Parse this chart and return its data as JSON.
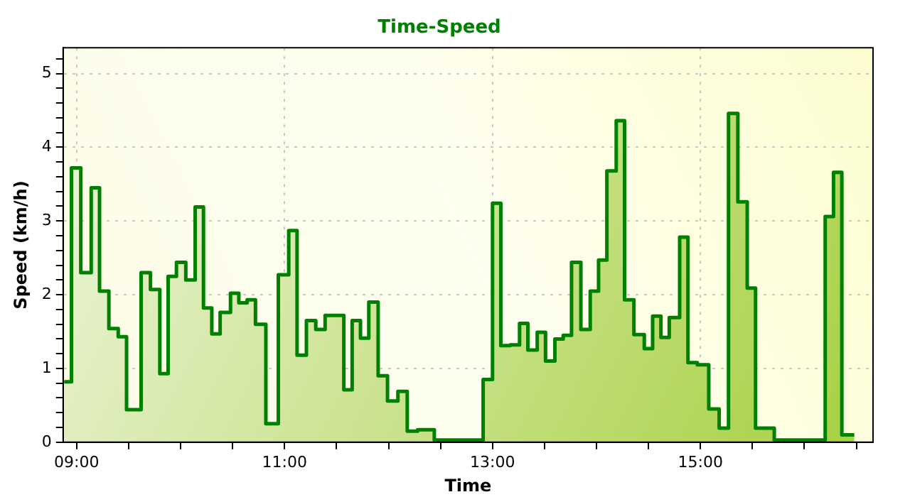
{
  "chart_data": {
    "type": "area",
    "title": "Time-Speed",
    "xlabel": "Time",
    "ylabel": "Speed (km/h)",
    "color": "#008000",
    "grid": true,
    "legend": false,
    "marker": "none",
    "x": [
      8.88,
      8.95,
      8.95,
      9.04,
      9.04,
      9.14,
      9.14,
      9.22,
      9.22,
      9.31,
      9.31,
      9.4,
      9.4,
      9.48,
      9.48,
      9.62,
      9.62,
      9.71,
      9.71,
      9.8,
      9.8,
      9.88,
      9.88,
      9.96,
      9.96,
      10.05,
      10.05,
      10.14,
      10.14,
      10.22,
      10.22,
      10.3,
      10.3,
      10.38,
      10.38,
      10.48,
      10.48,
      10.56,
      10.56,
      10.64,
      10.64,
      10.72,
      10.72,
      10.82,
      10.82,
      10.94,
      10.94,
      11.04,
      11.04,
      11.12,
      11.12,
      11.21,
      11.21,
      11.3,
      11.3,
      11.39,
      11.39,
      11.57,
      11.57,
      11.65,
      11.65,
      11.73,
      11.73,
      11.81,
      11.81,
      11.9,
      11.9,
      11.99,
      11.99,
      12.09,
      12.09,
      12.18,
      12.18,
      12.28,
      12.28,
      12.44,
      12.44,
      12.91,
      12.91,
      13.0,
      13.0,
      13.08,
      13.08,
      13.17,
      13.17,
      13.26,
      13.26,
      13.34,
      13.34,
      13.43,
      13.43,
      13.51,
      13.51,
      13.6,
      13.6,
      13.68,
      13.68,
      13.76,
      13.76,
      13.85,
      13.85,
      13.94,
      13.94,
      14.02,
      14.02,
      14.1,
      14.1,
      14.19,
      14.19,
      14.27,
      14.27,
      14.36,
      14.36,
      14.46,
      14.46,
      14.54,
      14.54,
      14.62,
      14.62,
      14.7,
      14.7,
      14.8,
      14.8,
      14.88,
      14.88,
      14.97,
      14.97,
      15.08,
      15.08,
      15.18,
      15.18,
      15.27,
      15.27,
      15.36,
      15.36,
      15.45,
      15.45,
      15.53,
      15.53,
      15.71,
      15.71,
      16.2,
      16.2,
      16.28,
      16.28,
      16.36,
      16.36,
      16.48
    ],
    "values": [
      0.82,
      0.82,
      3.72,
      3.72,
      2.3,
      2.3,
      3.45,
      3.45,
      2.05,
      2.05,
      1.54,
      1.54,
      1.43,
      1.43,
      0.44,
      0.44,
      2.3,
      2.3,
      2.07,
      2.07,
      0.93,
      0.93,
      2.25,
      2.25,
      2.44,
      2.44,
      2.2,
      2.2,
      3.19,
      3.19,
      1.82,
      1.82,
      1.47,
      1.47,
      1.76,
      1.76,
      2.02,
      2.02,
      1.89,
      1.89,
      1.93,
      1.93,
      1.6,
      1.6,
      0.25,
      0.25,
      2.27,
      2.27,
      2.87,
      2.87,
      1.18,
      1.18,
      1.65,
      1.65,
      1.53,
      1.53,
      1.72,
      1.72,
      0.71,
      0.71,
      1.65,
      1.65,
      1.41,
      1.41,
      1.9,
      1.9,
      0.9,
      0.9,
      0.56,
      0.56,
      0.69,
      0.69,
      0.15,
      0.15,
      0.17,
      0.17,
      0.03,
      0.03,
      0.85,
      0.85,
      3.24,
      3.24,
      1.31,
      1.31,
      1.32,
      1.32,
      1.61,
      1.61,
      1.25,
      1.25,
      1.49,
      1.49,
      1.1,
      1.1,
      1.4,
      1.4,
      1.45,
      1.45,
      2.44,
      2.44,
      1.53,
      1.53,
      2.05,
      2.05,
      2.47,
      2.47,
      3.68,
      3.68,
      4.36,
      4.36,
      1.93,
      1.93,
      1.46,
      1.46,
      1.27,
      1.27,
      1.71,
      1.71,
      1.42,
      1.42,
      1.69,
      1.69,
      2.78,
      2.78,
      1.08,
      1.08,
      1.05,
      1.05,
      0.45,
      0.45,
      0.19,
      0.19,
      4.46,
      4.46,
      3.26,
      3.26,
      2.09,
      2.09,
      0.19,
      0.19,
      0.03,
      0.03,
      3.06,
      3.06,
      3.66,
      3.66,
      0.1,
      0.1
    ],
    "xlim": [
      8.87,
      16.66
    ],
    "ylim": [
      0,
      5.35
    ],
    "xticks": [
      {
        "value": 9,
        "label": "09:00"
      },
      {
        "value": 9.5,
        "label": null
      },
      {
        "value": 10,
        "label": null
      },
      {
        "value": 10.5,
        "label": null
      },
      {
        "value": 11,
        "label": "11:00"
      },
      {
        "value": 11.5,
        "label": null
      },
      {
        "value": 12,
        "label": null
      },
      {
        "value": 12.5,
        "label": null
      },
      {
        "value": 13,
        "label": "13:00"
      },
      {
        "value": 13.5,
        "label": null
      },
      {
        "value": 14,
        "label": null
      },
      {
        "value": 14.5,
        "label": null
      },
      {
        "value": 15,
        "label": "15:00"
      },
      {
        "value": 15.5,
        "label": null
      },
      {
        "value": 16,
        "label": null
      },
      {
        "value": 16.5,
        "label": null
      }
    ],
    "yticks": [
      0,
      {
        "value": 0.2,
        "label": null
      },
      {
        "value": 0.4,
        "label": null
      },
      {
        "value": 0.6,
        "label": null
      },
      {
        "value": 0.8,
        "label": null
      },
      1,
      {
        "value": 1.2,
        "label": null
      },
      {
        "value": 1.4,
        "label": null
      },
      {
        "value": 1.6,
        "label": null
      },
      {
        "value": 1.8,
        "label": null
      },
      2,
      {
        "value": 2.2,
        "label": null
      },
      {
        "value": 2.4,
        "label": null
      },
      {
        "value": 2.6,
        "label": null
      },
      {
        "value": 2.8,
        "label": null
      },
      3,
      {
        "value": 3.2,
        "label": null
      },
      {
        "value": 3.4,
        "label": null
      },
      {
        "value": 3.6,
        "label": null
      },
      {
        "value": 3.8,
        "label": null
      },
      4,
      {
        "value": 4.2,
        "label": null
      },
      {
        "value": 4.4,
        "label": null
      },
      {
        "value": 4.6,
        "label": null
      },
      {
        "value": 4.8,
        "label": null
      },
      5,
      {
        "value": 5.2,
        "label": null
      }
    ]
  }
}
